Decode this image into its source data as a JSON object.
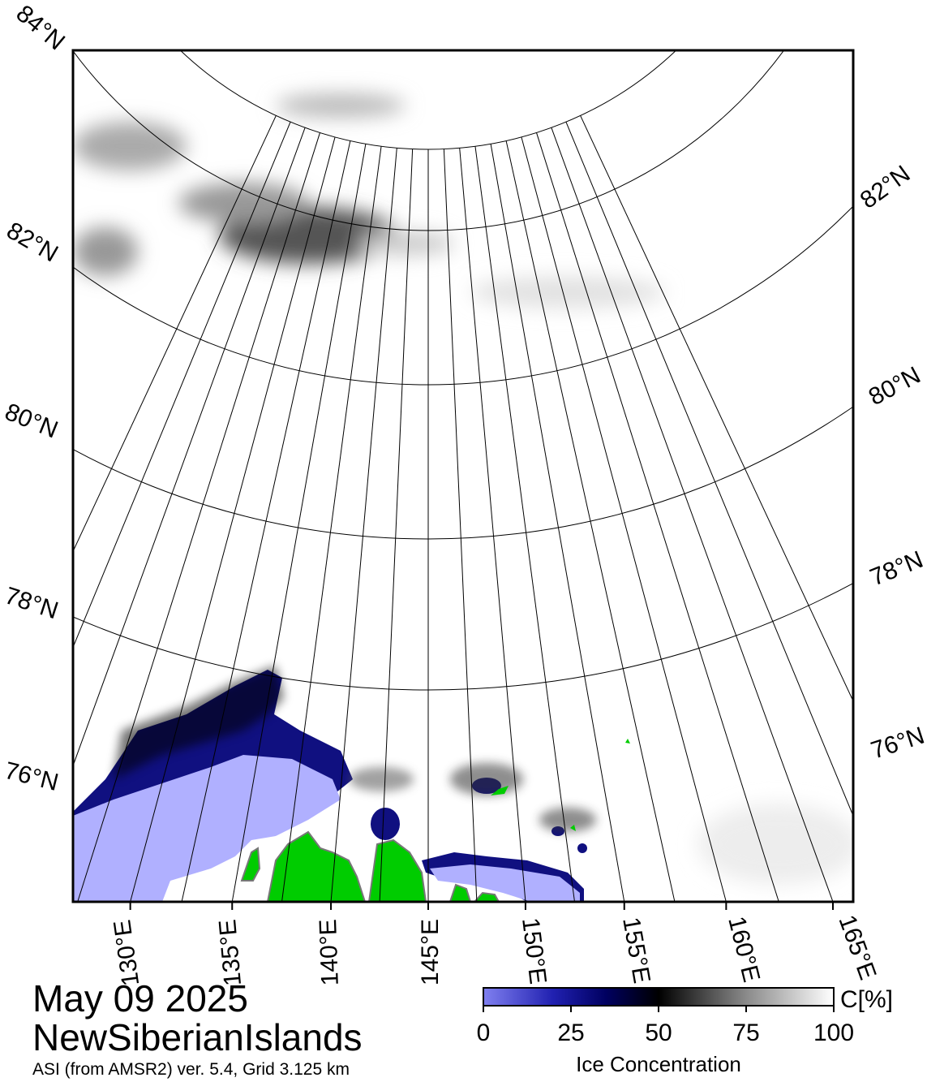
{
  "title": {
    "date": "May 09 2025",
    "region": "NewSiberianIslands",
    "source": "ASI (from AMSR2) ver. 5.4,  Grid 3.125 km"
  },
  "map": {
    "lat_labels_left": [
      "84°N",
      "82°N",
      "80°N",
      "78°N",
      "76°N"
    ],
    "lat_labels_right": [
      "82°N",
      "80°N",
      "78°N",
      "76°N"
    ],
    "lon_labels": [
      "130°E",
      "135°E",
      "140°E",
      "145°E",
      "150°E",
      "155°E",
      "160°E",
      "165°E"
    ],
    "colors": {
      "land": "#00cc00",
      "ocean_open": "#b0b0ff",
      "low_ice": "#0a0a8a",
      "grid": "#000000"
    }
  },
  "colorbar": {
    "title": "Ice Concentration",
    "unit": "C[%]",
    "ticks": [
      "0",
      "25",
      "50",
      "75",
      "100"
    ],
    "gradient": [
      "#7070ee",
      "#000070",
      "#000000",
      "#ffffff"
    ]
  }
}
